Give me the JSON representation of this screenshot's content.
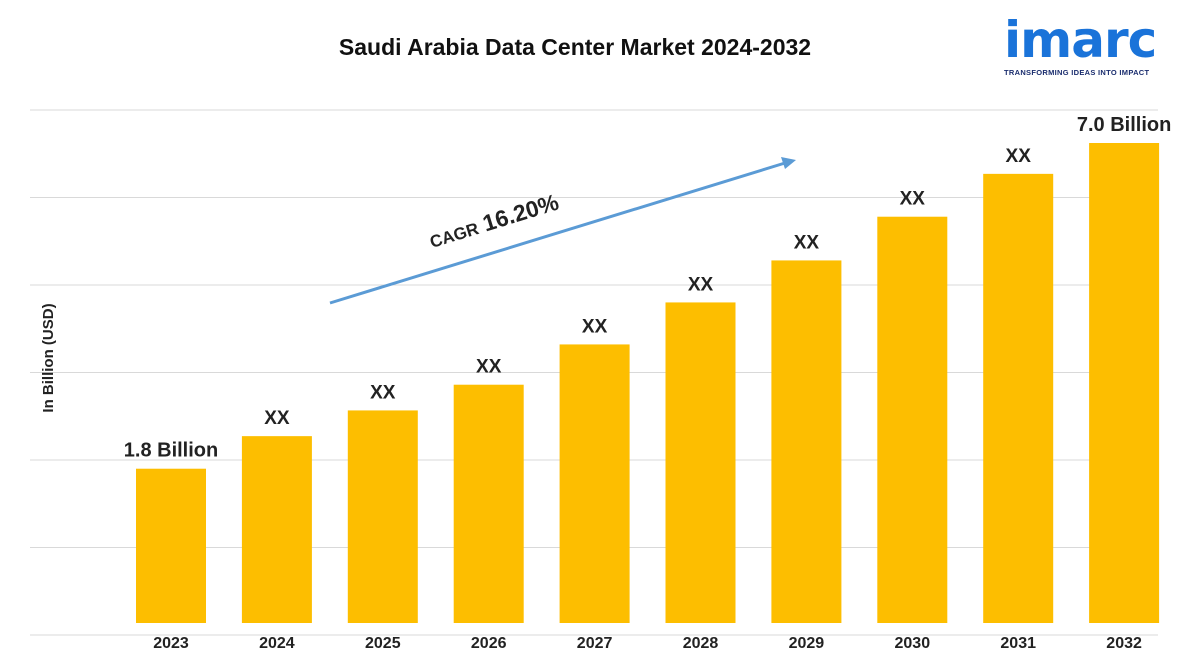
{
  "title": "Saudi Arabia Data Center Market 2024-2032",
  "logo": {
    "word": "imarc",
    "tagline": "TRANSFORMING IDEAS INTO IMPACT"
  },
  "colors": {
    "bar": "#FDBE00",
    "grid": "#d9d9d9",
    "arrow": "#5b9bd5",
    "brand": "#1a73d9"
  },
  "chart_data": {
    "type": "bar",
    "categories": [
      "2023",
      "2024",
      "2025",
      "2026",
      "2027",
      "2028",
      "2029",
      "2030",
      "2031",
      "2032"
    ],
    "values": [
      1.8,
      2.18,
      2.48,
      2.78,
      3.25,
      3.74,
      4.23,
      4.74,
      5.24,
      7.0
    ],
    "data_labels": [
      "1.8 Billion",
      "XX",
      "XX",
      "XX",
      "XX",
      "XX",
      "XX",
      "XX",
      "XX",
      "7.0 Billion"
    ],
    "ylabel": "In Billion (USD)",
    "ylim": [
      0,
      5.6
    ],
    "grid": true,
    "annotation": {
      "prefix": "CAGR",
      "value": "16.20%"
    }
  }
}
